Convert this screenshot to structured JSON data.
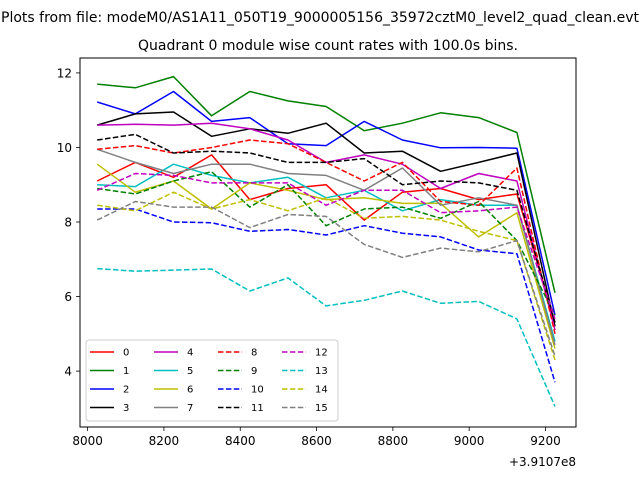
{
  "chart_data": {
    "type": "line",
    "suptitle": "Plots from file: modeM0/AS1A11_050T19_9000005156_35972cztM0_level2_quad_clean.evt",
    "title": "Quadrant 0 module wise count rates with 100.0s bins.",
    "xlabel": "",
    "ylabel": "",
    "offset_text": "+3.9107e8",
    "xlim": [
      7980,
      9280
    ],
    "ylim": [
      2.5,
      12.4
    ],
    "xticks": [
      8000,
      8200,
      8400,
      8600,
      8800,
      9000,
      9200
    ],
    "xtick_labels": [
      "8000",
      "8200",
      "8400",
      "8600",
      "8800",
      "9000",
      "9200"
    ],
    "yticks": [
      4,
      6,
      8,
      10,
      12
    ],
    "ytick_labels": [
      "4",
      "6",
      "8",
      "10",
      "12"
    ],
    "legend_position": "lower-left",
    "legend_columns": 4,
    "x": [
      8025,
      8125,
      8225,
      8325,
      8425,
      8525,
      8625,
      8725,
      8825,
      8925,
      9025,
      9125,
      9225
    ],
    "series": [
      {
        "name": "0",
        "color": "#ff0000",
        "dash": "solid",
        "values": [
          9.1,
          9.6,
          9.2,
          9.8,
          8.6,
          8.9,
          9.0,
          8.05,
          8.8,
          8.9,
          8.6,
          8.75,
          5.3
        ]
      },
      {
        "name": "1",
        "color": "#008000",
        "dash": "solid",
        "values": [
          11.7,
          11.6,
          11.9,
          10.85,
          11.5,
          11.25,
          11.1,
          10.45,
          10.65,
          10.93,
          10.8,
          10.4,
          6.1
        ]
      },
      {
        "name": "2",
        "color": "#0000ff",
        "dash": "solid",
        "values": [
          11.22,
          10.9,
          11.5,
          10.7,
          10.8,
          10.1,
          10.05,
          10.7,
          10.2,
          9.99,
          10.0,
          9.98,
          5.5
        ]
      },
      {
        "name": "3",
        "color": "#000000",
        "dash": "solid",
        "values": [
          10.6,
          10.9,
          10.95,
          10.3,
          10.5,
          10.38,
          10.65,
          9.85,
          9.9,
          9.36,
          9.6,
          9.85,
          5.2
        ]
      },
      {
        "name": "4",
        "color": "#bf00bf",
        "dash": "solid",
        "values": [
          10.6,
          10.62,
          10.6,
          10.65,
          10.5,
          10.2,
          9.6,
          9.8,
          9.55,
          8.9,
          9.3,
          9.1,
          5.1
        ]
      },
      {
        "name": "5",
        "color": "#00bfbf",
        "dash": "solid",
        "values": [
          9.0,
          8.95,
          9.55,
          9.25,
          9.05,
          9.2,
          8.65,
          8.85,
          8.3,
          8.6,
          8.45,
          8.45,
          4.8
        ]
      },
      {
        "name": "6",
        "color": "#bfbf00",
        "dash": "solid",
        "values": [
          9.55,
          8.8,
          9.1,
          8.35,
          9.05,
          8.85,
          8.6,
          8.65,
          8.5,
          8.5,
          7.6,
          8.25,
          4.6
        ]
      },
      {
        "name": "7",
        "color": "#808080",
        "dash": "solid",
        "values": [
          9.95,
          9.6,
          9.3,
          9.55,
          9.55,
          9.3,
          9.25,
          8.85,
          9.45,
          8.45,
          8.65,
          8.45,
          4.7
        ]
      },
      {
        "name": "8",
        "color": "#ff0000",
        "dash": "dashed",
        "values": [
          9.95,
          10.05,
          9.85,
          10.0,
          10.2,
          10.1,
          9.6,
          9.1,
          9.6,
          8.55,
          8.45,
          9.45,
          5.0
        ]
      },
      {
        "name": "9",
        "color": "#008000",
        "dash": "dashed",
        "values": [
          8.9,
          8.75,
          9.1,
          9.35,
          8.4,
          9.0,
          7.9,
          8.35,
          8.4,
          8.1,
          8.55,
          7.5,
          5.5
        ]
      },
      {
        "name": "10",
        "color": "#0000ff",
        "dash": "dashed",
        "values": [
          8.35,
          8.35,
          8.0,
          7.98,
          7.75,
          7.8,
          7.65,
          7.9,
          7.7,
          7.6,
          7.25,
          7.15,
          3.7
        ]
      },
      {
        "name": "11",
        "color": "#000000",
        "dash": "dashed",
        "values": [
          10.2,
          10.35,
          9.85,
          9.9,
          9.85,
          9.6,
          9.6,
          9.7,
          9.0,
          9.1,
          9.05,
          8.85,
          5.3
        ]
      },
      {
        "name": "12",
        "color": "#bf00bf",
        "dash": "dashed",
        "values": [
          8.85,
          9.3,
          9.25,
          9.05,
          9.05,
          9.05,
          8.45,
          8.85,
          8.85,
          8.25,
          8.3,
          8.4,
          5.4
        ]
      },
      {
        "name": "13",
        "color": "#00bfbf",
        "dash": "dashed",
        "values": [
          6.75,
          6.68,
          6.71,
          6.74,
          6.15,
          6.5,
          5.75,
          5.9,
          6.15,
          5.82,
          5.87,
          5.4,
          3.05
        ]
      },
      {
        "name": "14",
        "color": "#bfbf00",
        "dash": "dashed",
        "values": [
          8.45,
          8.3,
          8.8,
          8.35,
          8.6,
          8.3,
          8.65,
          8.1,
          8.15,
          8.05,
          7.75,
          7.5,
          4.3
        ]
      },
      {
        "name": "15",
        "color": "#808080",
        "dash": "dashed",
        "values": [
          8.05,
          8.55,
          8.4,
          8.4,
          7.85,
          8.2,
          8.15,
          7.4,
          7.05,
          7.3,
          7.2,
          7.5,
          4.4
        ]
      }
    ]
  }
}
